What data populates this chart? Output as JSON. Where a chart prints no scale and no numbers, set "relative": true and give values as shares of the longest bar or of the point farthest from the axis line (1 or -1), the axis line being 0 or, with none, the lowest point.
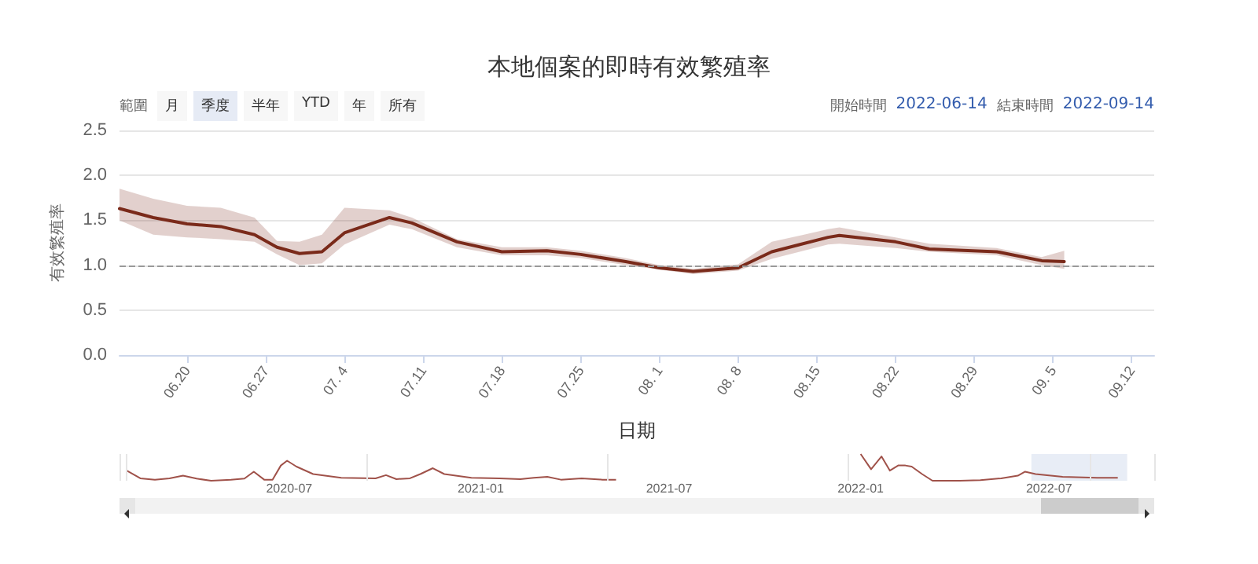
{
  "chart_data": [
    {
      "type": "line",
      "title": "本地個案的即時有效繁殖率",
      "xlabel": "日期",
      "ylabel": "有效繁殖率",
      "annotations": [
        "範圍",
        "月",
        "季度",
        "半年",
        "YTD",
        "年",
        "所有",
        "開始時間",
        "2022-06-14",
        "結束時間",
        "2022-09-14"
      ],
      "x": [
        "2022-06-14",
        "2022-06-17",
        "2022-06-20",
        "2022-06-23",
        "2022-06-26",
        "2022-06-28",
        "2022-06-30",
        "2022-07-02",
        "2022-07-04",
        "2022-07-08",
        "2022-07-10",
        "2022-07-14",
        "2022-07-18",
        "2022-07-22",
        "2022-07-25",
        "2022-07-29",
        "2022-08-01",
        "2022-08-04",
        "2022-08-08",
        "2022-08-11",
        "2022-08-16",
        "2022-08-17",
        "2022-08-22",
        "2022-08-25",
        "2022-08-31",
        "2022-09-04",
        "2022-09-06"
      ],
      "series": [
        {
          "color": "#7a2a1a",
          "values": [
            1.63,
            1.53,
            1.46,
            1.43,
            1.34,
            1.2,
            1.13,
            1.15,
            1.36,
            1.53,
            1.47,
            1.26,
            1.15,
            1.16,
            1.12,
            1.04,
            0.97,
            0.93,
            0.97,
            1.15,
            1.31,
            1.33,
            1.26,
            1.18,
            1.15,
            1.05,
            1.04
          ],
          "lower": [
            1.5,
            1.34,
            1.31,
            1.29,
            1.26,
            1.12,
            1.0,
            1.02,
            1.23,
            1.45,
            1.4,
            1.2,
            1.11,
            1.11,
            1.08,
            1.0,
            0.95,
            0.9,
            0.94,
            1.07,
            1.23,
            1.24,
            1.19,
            1.15,
            1.11,
            1.0,
            0.96
          ],
          "upper": [
            1.85,
            1.74,
            1.66,
            1.64,
            1.53,
            1.27,
            1.26,
            1.34,
            1.64,
            1.61,
            1.53,
            1.29,
            1.2,
            1.2,
            1.16,
            1.08,
            1.0,
            0.96,
            1.01,
            1.26,
            1.4,
            1.42,
            1.31,
            1.24,
            1.19,
            1.09,
            1.16
          ]
        }
      ],
      "xlim": [
        "2022-06-14",
        "2022-09-14"
      ],
      "xticks": [
        {
          "value": "2022-06-20",
          "label": "06.20"
        },
        {
          "value": "2022-06-27",
          "label": "06.27"
        },
        {
          "value": "2022-07-04",
          "label": "07. 4"
        },
        {
          "value": "2022-07-11",
          "label": "07.11"
        },
        {
          "value": "2022-07-18",
          "label": "07.18"
        },
        {
          "value": "2022-07-25",
          "label": "07.25"
        },
        {
          "value": "2022-08-01",
          "label": "08. 1"
        },
        {
          "value": "2022-08-08",
          "label": "08. 8"
        },
        {
          "value": "2022-08-15",
          "label": "08.15"
        },
        {
          "value": "2022-08-22",
          "label": "08.22"
        },
        {
          "value": "2022-08-29",
          "label": "08.29"
        },
        {
          "value": "2022-09-05",
          "label": "09. 5"
        },
        {
          "value": "2022-09-12",
          "label": "09.12"
        }
      ],
      "ylim": [
        0,
        2.5
      ],
      "yticks": [
        {
          "value": 0,
          "label": "0.0"
        },
        0.5,
        {
          "value": 1,
          "label": "1.0"
        },
        1.5,
        {
          "value": 2,
          "label": "2.0"
        },
        2.5
      ],
      "grid": "y",
      "marker": "none",
      "line_style": "solid",
      "ref_lines": [
        {
          "axis": "y",
          "value": 1,
          "color": "#999999",
          "line_style": "dashed"
        }
      ]
    },
    {
      "type": "line",
      "relative": true,
      "x": [
        "2020-01-27",
        "2020-02-09",
        "2020-02-23",
        "2020-03-08",
        "2020-03-21",
        "2020-04-03",
        "2020-04-17",
        "2020-05-06",
        "2020-05-19",
        "2020-05-28",
        "2020-06-07",
        "2020-06-15",
        "2020-06-23",
        "2020-06-29",
        "2020-07-08",
        "2020-07-24",
        "2020-08-20",
        "2020-09-22",
        "2020-10-02",
        "2020-10-12",
        "2020-10-25",
        "2020-11-04",
        "2020-11-16",
        "2020-11-27",
        "2020-12-23",
        "2021-01-19",
        "2021-02-08",
        "2021-02-21",
        "2021-03-06",
        "2021-03-19",
        "2021-04-08",
        "2021-04-28",
        "2021-05-11",
        "2021-08-01",
        "2022-01-01",
        "2022-01-11",
        "2022-01-21",
        "2022-01-29",
        "2022-02-06",
        "2022-02-13",
        "2022-02-19",
        "2022-03-01",
        "2022-03-11",
        "2022-04-06",
        "2022-04-26",
        "2022-05-16",
        "2022-06-01",
        "2022-06-08",
        "2022-06-18",
        "2022-07-14",
        "2022-08-16",
        "2022-09-05"
      ],
      "series": [
        {
          "color": "#a0524a",
          "values": [
            0.38,
            0.09,
            0.04,
            0.09,
            0.19,
            0.08,
            0,
            0.04,
            0.08,
            0.34,
            0.04,
            0.04,
            0.57,
            0.75,
            0.53,
            0.25,
            0.11,
            0.09,
            0.21,
            0.06,
            0.09,
            0.25,
            0.47,
            0.25,
            0.11,
            0.09,
            0.06,
            0.11,
            0.15,
            0.04,
            0.09,
            0.04,
            0.04,
            null,
            1,
            0.43,
            0.91,
            0.38,
            0.57,
            0.57,
            0.53,
            0.25,
            0,
            0,
            0.02,
            0.09,
            0.19,
            0.34,
            0.25,
            0.15,
            0.11,
            0.11
          ]
        }
      ],
      "xlim": [
        "2020-01-20",
        "2022-10-10"
      ],
      "xticks": [
        {
          "value": "2020-07-01",
          "label": "2020-07"
        },
        {
          "value": "2021-01-01",
          "label": "2021-01"
        },
        {
          "value": "2021-07-01",
          "label": "2021-07"
        },
        {
          "value": "2022-01-01",
          "label": "2022-01"
        },
        {
          "value": "2022-07-01",
          "label": "2022-07"
        }
      ],
      "tick_labels": "x",
      "grid": "x",
      "marker": "none",
      "bands": [
        {
          "axis": "x",
          "from": "2022-06-14",
          "to": "2022-09-14",
          "color": "#ccd6eb"
        }
      ]
    }
  ]
}
